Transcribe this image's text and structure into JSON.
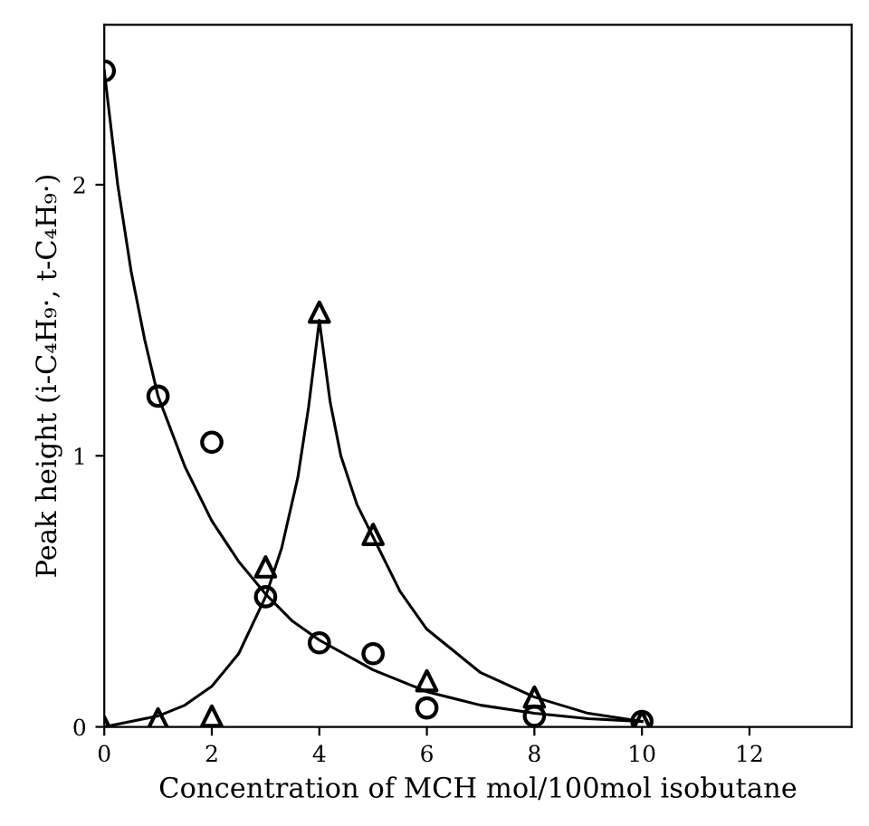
{
  "chart_data": {
    "type": "scatter",
    "xlabel": "Concentration of MCH mol/100mol isobutane",
    "ylabel": "Peak height (i-C₄H₉·, t-C₄H₉·)",
    "xlim": [
      0,
      13.9
    ],
    "ylim": [
      0,
      2.59
    ],
    "xticks": [
      0,
      2,
      4,
      6,
      8,
      10,
      12
    ],
    "yticks": [
      0,
      1,
      2
    ],
    "grid": false,
    "series": [
      {
        "marker": "circle",
        "color": "#000000",
        "x": [
          0,
          1,
          2,
          3,
          4,
          5,
          6,
          8,
          10
        ],
        "values": [
          2.42,
          1.22,
          1.05,
          0.48,
          0.31,
          0.27,
          0.07,
          0.04,
          0.02
        ]
      },
      {
        "marker": "triangle",
        "color": "#000000",
        "x": [
          0,
          1,
          2,
          3,
          4,
          5,
          6,
          8,
          10
        ],
        "values": [
          0,
          0.03,
          0.04,
          0.59,
          1.53,
          0.71,
          0.17,
          0.11,
          0.02
        ]
      },
      {
        "type": "line",
        "marker": "none",
        "line_style": "solid",
        "color": "#000000",
        "x": [
          0,
          0.25,
          0.5,
          0.75,
          1,
          1.5,
          2,
          2.5,
          3,
          3.5,
          4,
          5,
          6,
          7,
          8,
          9,
          10
        ],
        "values": [
          2.42,
          2.0,
          1.68,
          1.43,
          1.22,
          0.96,
          0.76,
          0.61,
          0.49,
          0.39,
          0.32,
          0.21,
          0.13,
          0.08,
          0.05,
          0.03,
          0.02
        ]
      },
      {
        "type": "line",
        "marker": "none",
        "line_style": "solid",
        "color": "#000000",
        "x": [
          0,
          1,
          1.5,
          2,
          2.5,
          3,
          3.3,
          3.6,
          3.8,
          4,
          4.2,
          4.4,
          4.7,
          5,
          5.5,
          6,
          7,
          8,
          9,
          10
        ],
        "values": [
          0,
          0.04,
          0.08,
          0.15,
          0.27,
          0.48,
          0.66,
          0.92,
          1.18,
          1.5,
          1.2,
          1.0,
          0.82,
          0.7,
          0.5,
          0.36,
          0.2,
          0.11,
          0.05,
          0.02
        ]
      }
    ]
  }
}
